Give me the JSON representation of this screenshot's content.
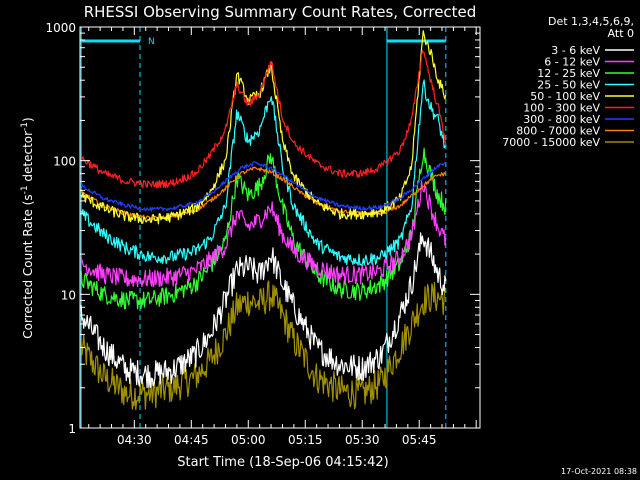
{
  "chart_data": {
    "type": "line",
    "title": "RHESSI Observing Summary Count Rates, Corrected",
    "xlabel": "Start Time (18-Sep-06 04:15:42)",
    "ylabel_main": "Corrected Count Rate (s",
    "ylabel_sup1": "-1",
    "ylabel_mid": " detector",
    "ylabel_sup2": "-1",
    "ylabel_end": ")",
    "y_scale": "log",
    "ylim": [
      1,
      1000
    ],
    "xlim_minutes": [
      255.7,
      361.0
    ],
    "x_tick_labels": [
      "04:30",
      "04:45",
      "05:00",
      "05:15",
      "05:30",
      "05:45"
    ],
    "x_tick_minutes": [
      270,
      285,
      300,
      315,
      330,
      345
    ],
    "y_tick_labels": [
      "1",
      "10",
      "100",
      "1000"
    ],
    "y_tick_values": [
      1,
      10,
      100,
      1000
    ],
    "legend": {
      "header1": "Det 1,3,4,5,6,9,",
      "header2": "Att 0",
      "position": "right"
    },
    "timestamp": "17-Oct-2021 08:38",
    "night_marker": "N",
    "night_intervals_minutes": [
      [
        255.7,
        271.5
      ],
      [
        336.5,
        352.0
      ]
    ],
    "saa_lines_minutes": [
      271.5,
      352.0
    ],
    "night_edges_minutes": [
      256.0,
      336.5
    ],
    "series": [
      {
        "name": "3 - 6 keV",
        "color": "#ffffff",
        "t": [
          256,
          262,
          268,
          274,
          280,
          286,
          290,
          294,
          297,
          300,
          303,
          306,
          309,
          312,
          318,
          324,
          330,
          335,
          340,
          343,
          346,
          348,
          350,
          352
        ],
        "values": [
          7,
          4,
          2.7,
          2.5,
          2.7,
          3.5,
          5,
          9,
          15,
          16,
          14,
          20,
          12,
          8,
          4,
          3,
          2.8,
          3.5,
          7,
          12,
          28,
          20,
          14,
          11
        ]
      },
      {
        "name": "6 - 12 keV",
        "color": "#ff40ff",
        "t": [
          256,
          262,
          268,
          274,
          280,
          286,
          290,
          294,
          297,
          300,
          303,
          306,
          309,
          312,
          318,
          324,
          330,
          335,
          340,
          343,
          346,
          348,
          350,
          352
        ],
        "values": [
          17,
          14,
          13,
          13,
          13.5,
          15,
          18,
          23,
          40,
          32,
          36,
          45,
          28,
          21,
          16,
          14,
          14,
          15,
          19,
          27,
          70,
          45,
          32,
          25
        ]
      },
      {
        "name": "12 - 25 keV",
        "color": "#30ff30",
        "t": [
          256,
          262,
          268,
          274,
          280,
          286,
          290,
          294,
          297,
          300,
          303,
          306,
          309,
          312,
          318,
          324,
          330,
          335,
          340,
          343,
          346,
          348,
          350,
          352
        ],
        "values": [
          13,
          10,
          9,
          9,
          10,
          12,
          16,
          25,
          75,
          55,
          65,
          110,
          45,
          25,
          14,
          11,
          10.5,
          12,
          17,
          28,
          120,
          80,
          55,
          45
        ]
      },
      {
        "name": "25 - 50 keV",
        "color": "#30ffff",
        "t": [
          256,
          262,
          268,
          274,
          280,
          286,
          290,
          294,
          297,
          300,
          303,
          306,
          309,
          312,
          318,
          324,
          330,
          335,
          340,
          343,
          346,
          348,
          350,
          352
        ],
        "values": [
          40,
          28,
          22,
          19,
          19,
          21,
          26,
          45,
          230,
          140,
          170,
          320,
          90,
          45,
          24,
          19,
          18,
          19,
          25,
          45,
          380,
          250,
          200,
          120
        ]
      },
      {
        "name": "50 - 100 keV",
        "color": "#ffff30",
        "t": [
          256,
          262,
          268,
          274,
          280,
          286,
          290,
          294,
          297,
          300,
          303,
          306,
          309,
          312,
          318,
          324,
          330,
          335,
          340,
          343,
          346,
          348,
          350,
          352
        ],
        "values": [
          55,
          44,
          38,
          36,
          38,
          44,
          58,
          100,
          450,
          280,
          320,
          520,
          140,
          75,
          48,
          40,
          40,
          42,
          52,
          90,
          900,
          650,
          400,
          300
        ]
      },
      {
        "name": "100 - 300 keV",
        "color": "#ff2020",
        "t": [
          256,
          262,
          268,
          274,
          280,
          286,
          290,
          294,
          297,
          300,
          303,
          306,
          309,
          312,
          318,
          324,
          330,
          335,
          340,
          343,
          346,
          348,
          350,
          352
        ],
        "values": [
          105,
          80,
          70,
          66,
          68,
          80,
          110,
          170,
          370,
          260,
          320,
          560,
          210,
          135,
          95,
          80,
          80,
          90,
          120,
          200,
          700,
          400,
          250,
          140
        ]
      },
      {
        "name": "300 - 800 keV",
        "color": "#2040ff",
        "t": [
          256,
          262,
          268,
          274,
          280,
          286,
          290,
          294,
          298,
          302,
          306,
          310,
          314,
          318,
          324,
          330,
          335,
          340,
          344,
          348,
          350,
          352
        ],
        "values": [
          65,
          52,
          46,
          43,
          44,
          48,
          56,
          70,
          88,
          96,
          88,
          75,
          62,
          53,
          46,
          44,
          45,
          52,
          65,
          82,
          92,
          95
        ]
      },
      {
        "name": "800 - 7000 keV",
        "color": "#ff8000",
        "t": [
          256,
          262,
          268,
          274,
          280,
          286,
          290,
          294,
          298,
          302,
          306,
          310,
          314,
          318,
          324,
          330,
          335,
          340,
          344,
          348,
          350,
          352
        ],
        "values": [
          58,
          46,
          40,
          37,
          38,
          42,
          50,
          62,
          80,
          88,
          82,
          70,
          57,
          48,
          42,
          40,
          40,
          46,
          58,
          72,
          78,
          80
        ]
      },
      {
        "name": "7000 - 15000 keV",
        "color": "#a09000",
        "t": [
          256,
          262,
          268,
          274,
          280,
          286,
          290,
          294,
          297,
          300,
          303,
          306,
          309,
          312,
          318,
          324,
          330,
          335,
          340,
          343,
          346,
          348,
          350,
          352
        ],
        "values": [
          4,
          2.4,
          1.8,
          1.8,
          2,
          2.4,
          3.2,
          5,
          8,
          9,
          8.5,
          10,
          7,
          4.5,
          2.4,
          1.9,
          1.8,
          2.2,
          4,
          6,
          9,
          9.5,
          9.5,
          9
        ]
      }
    ]
  }
}
